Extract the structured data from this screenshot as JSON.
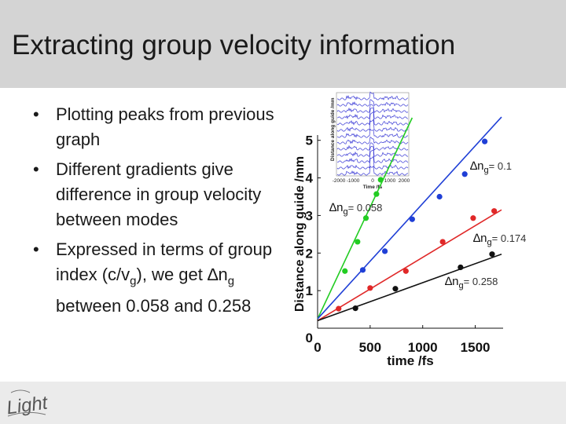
{
  "slide": {
    "title": "Extracting group velocity information",
    "bullets": [
      {
        "runs": [
          {
            "t": "Plotting peaks from previous graph"
          }
        ]
      },
      {
        "runs": [
          {
            "t": "Different gradients give difference in group velocity between modes"
          }
        ]
      },
      {
        "runs": [
          {
            "t": "Expressed in terms of group index (c/v"
          },
          {
            "t": "g",
            "sub": true
          },
          {
            "t": "), we get "
          },
          {
            "t": "∆",
            "sym": true
          },
          {
            "t": "n"
          },
          {
            "t": "g",
            "sub": true
          },
          {
            "t": " between 0.058 and 0.258"
          }
        ]
      }
    ],
    "logo_text": "Light"
  },
  "chart_data": {
    "type": "scatter",
    "xlabel": "time /fs",
    "ylabel": "Distance along guide /mm",
    "xlim": [
      0,
      1750
    ],
    "ylim": [
      0,
      5.6
    ],
    "xticks": [
      "0",
      "500",
      "1000",
      "1500"
    ],
    "yticks": [
      "0",
      "1",
      "2",
      "3",
      "4",
      "5"
    ],
    "grid": false,
    "series": [
      {
        "color": "#22cc22",
        "label": "",
        "fit": {
          "x0": 0,
          "y0": 0.25,
          "x1": 900,
          "y1": 5.6
        },
        "points": [
          [
            260,
            1.52
          ],
          [
            380,
            2.3
          ],
          [
            460,
            2.93
          ],
          [
            560,
            3.57
          ],
          [
            600,
            3.95
          ]
        ]
      },
      {
        "color": "#1f3fd6",
        "label": "∆n_g= 0.058 (upper blue)",
        "fit": {
          "x0": 0,
          "y0": 0.25,
          "x1": 1750,
          "y1": 5.62
        },
        "points": [
          [
            430,
            1.55
          ],
          [
            640,
            2.05
          ],
          [
            900,
            2.9
          ],
          [
            1160,
            3.5
          ],
          [
            1400,
            4.1
          ],
          [
            1590,
            4.97
          ]
        ]
      },
      {
        "color": "#e02828",
        "label": "",
        "fit": {
          "x0": 0,
          "y0": 0.2,
          "x1": 1750,
          "y1": 3.15
        },
        "points": [
          [
            200,
            0.52
          ],
          [
            500,
            1.07
          ],
          [
            840,
            1.52
          ],
          [
            1190,
            2.3
          ],
          [
            1480,
            2.93
          ],
          [
            1680,
            3.12
          ]
        ]
      },
      {
        "color": "#111111",
        "label": "",
        "fit": {
          "x0": 0,
          "y0": 0.2,
          "x1": 1750,
          "y1": 1.97
        },
        "points": [
          [
            360,
            0.53
          ],
          [
            740,
            1.05
          ],
          [
            1360,
            1.62
          ],
          [
            1660,
            1.97
          ]
        ]
      }
    ],
    "annotations": [
      {
        "name": "dng-0.1",
        "main": "∆n",
        "sub": "g",
        "value": "= 0.1"
      },
      {
        "name": "dng-0.058",
        "main": "∆n",
        "sub": "g",
        "value": "= 0.058"
      },
      {
        "name": "dng-0.174",
        "main": "∆n",
        "sub": "g",
        "value": "= 0.174"
      },
      {
        "name": "dng-0.258",
        "main": "∆n",
        "sub": "g",
        "value": "= 0.258"
      }
    ],
    "inset": {
      "ylabel": "Distance along guide /mm",
      "xlabel": "Time /fs",
      "xticks": [
        "-2000",
        "-1000",
        "0",
        "1000",
        "2000"
      ],
      "trace_count": 13,
      "trace_color": "#3b3bd6"
    }
  }
}
